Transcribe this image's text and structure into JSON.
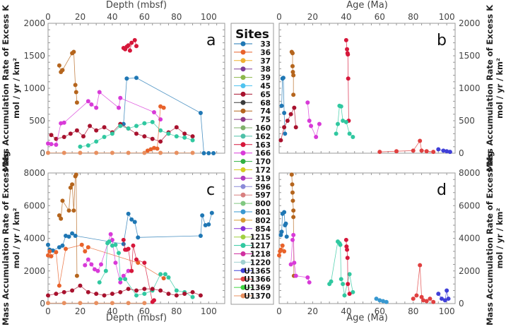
{
  "legend": {
    "title": "Sites",
    "entries": [
      {
        "label": "33",
        "color": "#1f77b4"
      },
      {
        "label": "36",
        "color": "#e8622a"
      },
      {
        "label": "37",
        "color": "#f0b030"
      },
      {
        "label": "38",
        "color": "#7d3c98"
      },
      {
        "label": "39",
        "color": "#8cb84a"
      },
      {
        "label": "45",
        "color": "#4fc3f0"
      },
      {
        "label": "65",
        "color": "#a8122e"
      },
      {
        "label": "68",
        "color": "#3a3a3a"
      },
      {
        "label": "74",
        "color": "#b5651d"
      },
      {
        "label": "75",
        "color": "#8e3a8a"
      },
      {
        "label": "160",
        "color": "#7fb06a"
      },
      {
        "label": "162",
        "color": "#4dc0a8"
      },
      {
        "label": "163",
        "color": "#d6173a"
      },
      {
        "label": "166",
        "color": "#d83ad8"
      },
      {
        "label": "170",
        "color": "#2fb040"
      },
      {
        "label": "172",
        "color": "#d4cc20"
      },
      {
        "label": "319",
        "color": "#b03ac0"
      },
      {
        "label": "596",
        "color": "#8a8ad8"
      },
      {
        "label": "597",
        "color": "#d88080"
      },
      {
        "label": "800",
        "color": "#80c880"
      },
      {
        "label": "801",
        "color": "#3898d0"
      },
      {
        "label": "802",
        "color": "#d89a30"
      },
      {
        "label": "854",
        "color": "#8830d8"
      },
      {
        "label": "1215",
        "color": "#a0d040"
      },
      {
        "label": "1217",
        "color": "#30c8a0"
      },
      {
        "label": "1218",
        "color": "#d030a0"
      },
      {
        "label": "1220",
        "color": "#a0d0d0"
      },
      {
        "label": "U1365",
        "color": "#4040d8"
      },
      {
        "label": "U1366",
        "color": "#e04040"
      },
      {
        "label": "U1369",
        "color": "#40d840"
      },
      {
        "label": "U1370",
        "color": "#e89060"
      }
    ]
  },
  "chart_data": [
    {
      "panel": "a",
      "type": "line",
      "xlabel": "Depth (mbsf)",
      "ylabel": "Mass Accumulation Rate of Excess K",
      "ylabel2": "mol / yr / km²",
      "xlim": [
        0,
        110
      ],
      "ylim": [
        0,
        2000
      ],
      "xticks": [
        0,
        20,
        40,
        60,
        80,
        100
      ],
      "yticks": [
        0,
        500,
        1000,
        1500,
        2000
      ],
      "xaxis_position": "top",
      "yaxis_position": "left",
      "series": [
        {
          "name": "74",
          "x": [
            7,
            8,
            9,
            15,
            16,
            17,
            17.5,
            18
          ],
          "y": [
            1350,
            1250,
            1280,
            1540,
            1560,
            1050,
            940,
            780
          ]
        },
        {
          "name": "163",
          "x": [
            47,
            48,
            49,
            50,
            51,
            52,
            54,
            55
          ],
          "y": [
            1620,
            1600,
            1640,
            1660,
            1580,
            1700,
            1740,
            1650
          ]
        },
        {
          "name": "33",
          "x": [
            47,
            49,
            55,
            95,
            97,
            100,
            103
          ],
          "y": [
            450,
            1150,
            1160,
            620,
            0,
            0,
            0
          ]
        },
        {
          "name": "65",
          "x": [
            2,
            5,
            10,
            14,
            18,
            22,
            26,
            30,
            35,
            40,
            45,
            50,
            55,
            60,
            65,
            70,
            75,
            80,
            85,
            90
          ],
          "y": [
            280,
            220,
            250,
            300,
            350,
            260,
            420,
            350,
            400,
            320,
            450,
            380,
            300,
            260,
            220,
            180,
            320,
            400,
            300,
            260
          ]
        },
        {
          "name": "166",
          "x": [
            0,
            2,
            5,
            8,
            10,
            25,
            27,
            30,
            32,
            44,
            45,
            66,
            70
          ],
          "y": [
            150,
            140,
            130,
            460,
            470,
            800,
            750,
            700,
            940,
            700,
            850,
            630,
            520
          ]
        },
        {
          "name": "1217",
          "x": [
            20,
            25,
            30,
            35,
            40,
            45,
            50,
            55,
            60,
            65,
            70,
            75,
            80,
            85,
            90
          ],
          "y": [
            100,
            120,
            180,
            250,
            300,
            420,
            380,
            420,
            460,
            480,
            350,
            300,
            260,
            240,
            200
          ]
        },
        {
          "name": "36",
          "x": [
            62,
            64,
            66,
            68,
            70,
            72
          ],
          "y": [
            40,
            60,
            80,
            70,
            720,
            700
          ]
        },
        {
          "name": "U1370",
          "x": [
            0,
            10,
            20,
            30,
            40,
            50,
            60,
            70,
            80,
            90
          ],
          "y": [
            5,
            5,
            5,
            5,
            5,
            5,
            5,
            5,
            5,
            5
          ]
        }
      ]
    },
    {
      "panel": "b",
      "type": "line",
      "xlabel": "Age (Ma)",
      "ylabel": "Mass Accumulation Rate of Excess K",
      "ylabel2": "mol / yr / km²",
      "xlim": [
        0,
        105
      ],
      "ylim": [
        0,
        2000
      ],
      "xticks": [
        0,
        20,
        40,
        60,
        80,
        100
      ],
      "yticks": [
        0,
        500,
        1000,
        1500,
        2000
      ],
      "xaxis_position": "top",
      "yaxis_position": "right",
      "series": [
        {
          "name": "33",
          "x": [
            1.5,
            2,
            2.5,
            3,
            3.5
          ],
          "y": [
            730,
            1150,
            1160,
            620,
            300
          ]
        },
        {
          "name": "74",
          "x": [
            7.5,
            8,
            8,
            8.2,
            8.5,
            8.5
          ],
          "y": [
            1560,
            1540,
            1340,
            1250,
            1200,
            900
          ]
        },
        {
          "name": "163",
          "x": [
            40,
            40.5,
            40.8,
            41,
            41.2,
            41.5
          ],
          "y": [
            1740,
            1600,
            1540,
            1520,
            1150,
            500
          ]
        },
        {
          "name": "1217",
          "x": [
            34,
            35,
            36,
            37,
            38,
            40,
            42,
            44
          ],
          "y": [
            300,
            450,
            730,
            720,
            500,
            480,
            300,
            250
          ]
        },
        {
          "name": "166",
          "x": [
            17,
            18,
            19,
            22,
            24
          ],
          "y": [
            780,
            500,
            420,
            250,
            450
          ]
        },
        {
          "name": "65",
          "x": [
            1,
            3,
            5,
            7,
            9,
            10
          ],
          "y": [
            200,
            400,
            500,
            600,
            700,
            400
          ]
        },
        {
          "name": "U1366",
          "x": [
            60,
            70,
            80,
            84,
            85,
            88,
            92
          ],
          "y": [
            20,
            30,
            40,
            190,
            40,
            30,
            20
          ]
        },
        {
          "name": "U1365",
          "x": [
            95,
            98,
            100,
            102
          ],
          "y": [
            60,
            40,
            30,
            20
          ]
        }
      ]
    },
    {
      "panel": "c",
      "type": "line",
      "xlabel": "Depth (mbsf)",
      "ylabel": "Mass Accumulation Rate of Excess Mg",
      "ylabel2": "mol / yr / km²",
      "xlim": [
        0,
        110
      ],
      "ylim": [
        0,
        8000
      ],
      "xticks": [
        0,
        20,
        40,
        60,
        80,
        100
      ],
      "yticks": [
        0,
        2000,
        4000,
        6000,
        8000
      ],
      "xaxis_position": "bottom",
      "yaxis_position": "left",
      "series": [
        {
          "name": "74",
          "x": [
            7,
            8,
            9,
            13,
            14,
            15,
            16,
            17,
            17.5,
            18
          ],
          "y": [
            5400,
            5200,
            6300,
            5700,
            7100,
            7300,
            5700,
            7800,
            7900,
            1700
          ]
        },
        {
          "name": "33",
          "x": [
            0,
            1,
            3,
            7,
            9,
            11,
            13,
            15,
            17,
            47,
            50,
            52,
            54,
            56,
            95,
            96,
            98,
            100,
            102
          ],
          "y": [
            3600,
            3300,
            3250,
            3450,
            3550,
            4150,
            4100,
            4300,
            4150,
            3650,
            5500,
            5150,
            5000,
            4050,
            4150,
            5400,
            4800,
            4850,
            5550
          ]
        },
        {
          "name": "36",
          "x": [
            0,
            1,
            2,
            5,
            7,
            11,
            21,
            23,
            25,
            56,
            72
          ],
          "y": [
            2950,
            3200,
            2900,
            3150,
            1100,
            3350,
            3600,
            3200,
            3450,
            2500,
            1550
          ]
        },
        {
          "name": "166",
          "x": [
            23,
            25,
            27,
            29,
            31,
            33,
            39,
            40,
            42,
            45,
            47,
            50
          ],
          "y": [
            2350,
            2700,
            2400,
            2100,
            2000,
            2400,
            4250,
            3900,
            2500,
            1300,
            1700,
            2000
          ]
        },
        {
          "name": "1217",
          "x": [
            32,
            36,
            37,
            38,
            40,
            42,
            44,
            45,
            48,
            55,
            60,
            65,
            70,
            73,
            75,
            80,
            85,
            90
          ],
          "y": [
            1300,
            2000,
            3700,
            3800,
            3550,
            3600,
            3100,
            1500,
            1500,
            500,
            600,
            800,
            1800,
            1800,
            1600,
            800,
            700,
            400
          ]
        },
        {
          "name": "163",
          "x": [
            47,
            48,
            49,
            50,
            52,
            53,
            55,
            60,
            65,
            66
          ],
          "y": [
            3900,
            3300,
            3300,
            3350,
            2000,
            3550,
            2700,
            2500,
            100,
            200
          ]
        },
        {
          "name": "65",
          "x": [
            0,
            5,
            10,
            15,
            20,
            25,
            30,
            35,
            40,
            45,
            50,
            55,
            60,
            65,
            70,
            75,
            80,
            85,
            90,
            95
          ],
          "y": [
            500,
            600,
            700,
            800,
            1100,
            700,
            600,
            500,
            600,
            700,
            900,
            800,
            900,
            900,
            800,
            600,
            500,
            600,
            700,
            500
          ]
        },
        {
          "name": "U1370",
          "x": [
            0,
            10,
            20,
            30,
            40,
            50,
            60
          ],
          "y": [
            30,
            30,
            30,
            30,
            30,
            30,
            30
          ]
        }
      ]
    },
    {
      "panel": "d",
      "type": "line",
      "xlabel": "Age (Ma)",
      "ylabel": "Mass Accumulation Rate of Excess Mg",
      "ylabel2": "mol / yr / km²",
      "xlim": [
        0,
        105
      ],
      "ylim": [
        0,
        8000
      ],
      "xticks": [
        0,
        20,
        40,
        60,
        80,
        100
      ],
      "yticks": [
        0,
        2000,
        4000,
        6000,
        8000
      ],
      "xaxis_position": "bottom",
      "yaxis_position": "right",
      "series": [
        {
          "name": "74",
          "x": [
            7.5,
            7.8,
            8,
            8.2,
            8.5,
            8.5,
            8.8
          ],
          "y": [
            7900,
            7300,
            6800,
            6300,
            5700,
            5300,
            1700
          ]
        },
        {
          "name": "33",
          "x": [
            1,
            1.5,
            2,
            3,
            3.5,
            4,
            4.5
          ],
          "y": [
            4200,
            4400,
            5500,
            5600,
            4800,
            4900,
            4100
          ]
        },
        {
          "name": "36",
          "x": [
            0,
            0.5,
            1,
            2,
            3
          ],
          "y": [
            2950,
            3200,
            3300,
            3550,
            3200
          ]
        },
        {
          "name": "166",
          "x": [
            7,
            8,
            8.5,
            9,
            10,
            17,
            18
          ],
          "y": [
            2400,
            3900,
            4200,
            2500,
            1700,
            1600,
            1300
          ]
        },
        {
          "name": "1217",
          "x": [
            30,
            31,
            35,
            36,
            36.5,
            37,
            38,
            39,
            42,
            44
          ],
          "y": [
            1200,
            1350,
            3800,
            3700,
            3600,
            1500,
            1200,
            500,
            1800,
            700
          ]
        },
        {
          "name": "163",
          "x": [
            40,
            40.2,
            40.5,
            40.8,
            41,
            42
          ],
          "y": [
            3900,
            3500,
            3300,
            2800,
            1200,
            600
          ]
        },
        {
          "name": "U1366",
          "x": [
            80,
            82,
            84,
            85,
            86,
            88,
            90,
            92
          ],
          "y": [
            300,
            500,
            2350,
            400,
            200,
            150,
            300,
            100
          ]
        },
        {
          "name": "U1365",
          "x": [
            95,
            97,
            99,
            100,
            101
          ],
          "y": [
            600,
            300,
            200,
            800,
            300
          ]
        },
        {
          "name": "801",
          "x": [
            58,
            60,
            62,
            64
          ],
          "y": [
            300,
            200,
            150,
            100
          ]
        }
      ]
    }
  ]
}
